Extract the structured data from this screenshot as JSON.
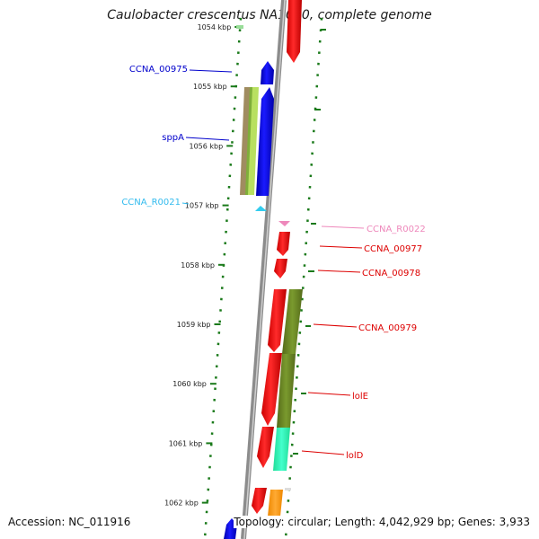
{
  "title": "Caulobacter crescentus NA1000, complete genome",
  "footer": {
    "accession": "Accession: NC_011916",
    "summary": "Topology: circular; Length: 4,042,929 bp; Genes: 3,933"
  },
  "scale_ticks": [
    {
      "label": "1054 kbp",
      "kbp": 1054
    },
    {
      "label": "1055 kbp",
      "kbp": 1055
    },
    {
      "label": "1056 kbp",
      "kbp": 1056
    },
    {
      "label": "1057 kbp",
      "kbp": 1057
    },
    {
      "label": "1058 kbp",
      "kbp": 1058
    },
    {
      "label": "1059 kbp",
      "kbp": 1059
    },
    {
      "label": "1060 kbp",
      "kbp": 1060
    },
    {
      "label": "1061 kbp",
      "kbp": 1061
    },
    {
      "label": "1062 kbp",
      "kbp": 1062
    }
  ],
  "gene_labels": [
    {
      "name": "CCNA_00975",
      "color": "#0000cc",
      "side": "left"
    },
    {
      "name": "sppA",
      "color": "#0000cc",
      "side": "left"
    },
    {
      "name": "CCNA_R0021",
      "color": "#33bbee",
      "side": "left"
    },
    {
      "name": "CCNA_R0022",
      "color": "#ee88bb",
      "side": "right"
    },
    {
      "name": "CCNA_00977",
      "color": "#dd0000",
      "side": "right"
    },
    {
      "name": "CCNA_00978",
      "color": "#dd0000",
      "side": "right"
    },
    {
      "name": "CCNA_00979",
      "color": "#dd0000",
      "side": "right"
    },
    {
      "name": "lolE",
      "color": "#dd0000",
      "side": "right"
    },
    {
      "name": "lolD",
      "color": "#dd0000",
      "side": "right"
    }
  ],
  "colors": {
    "backbone": "#8c8c8c",
    "forward_cds": "#ff0000",
    "reverse_cds": "#0000ff",
    "trna": "#33ccee",
    "rrna": "#ee88bb",
    "tick_green": "#1a7a1a",
    "cog_olive": "#6b8e23",
    "cog_teal": "#33ffbb",
    "cog_orange": "#ff9900",
    "cog_tan": "#a08c60",
    "cog_lime": "#b8e060"
  }
}
